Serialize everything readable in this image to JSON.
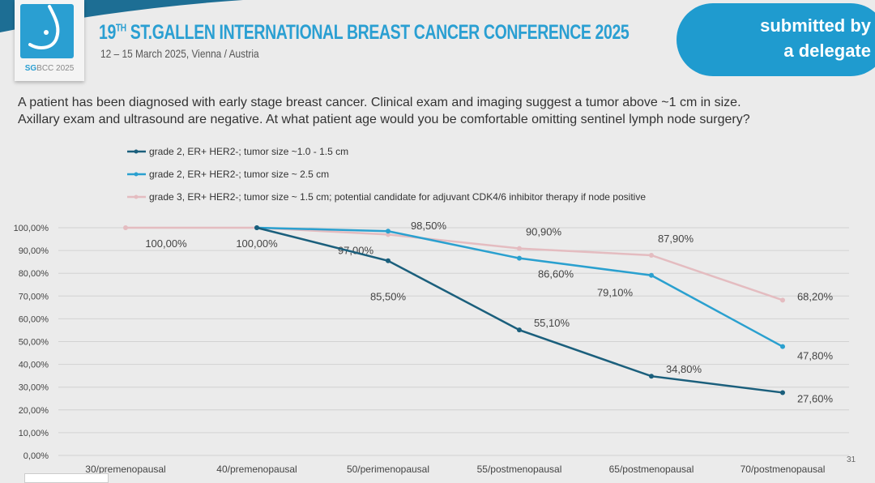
{
  "header": {
    "logo_text": "SGBCC 2025",
    "title_prefix": "19",
    "title_sup": "TH",
    "title_main": " ST.GALLEN INTERNATIONAL BREAST CANCER CONFERENCE 2025",
    "subtitle": "12 – 15 March 2025, Vienna / Austria",
    "badge_line1": "submitted by",
    "badge_line2": "a delegate"
  },
  "question_line1": "A patient has been diagnosed with early stage breast cancer.  Clinical exam and imaging suggest a tumor above ~1 cm in size.",
  "question_line2": "Axillary exam and ultrasound are negative.  At what patient age would you be comfortable omitting sentinel lymph node surgery?",
  "page_number": "31",
  "chart_data": {
    "type": "line",
    "categories": [
      "30/premenopausal",
      "40/premenopausal",
      "50/perimenopausal",
      "55/postmenopausal",
      "65/postmenopausal",
      "70/postmenopausal"
    ],
    "ylim": [
      0,
      100
    ],
    "yticks": [
      "0,00%",
      "10,00%",
      "20,00%",
      "30,00%",
      "40,00%",
      "50,00%",
      "60,00%",
      "70,00%",
      "80,00%",
      "90,00%",
      "100,00%"
    ],
    "grid": true,
    "legend_placement": "top-left",
    "series": [
      {
        "name": "grade 2, ER+ HER2-; tumor size ~1.0 - 1.5 cm",
        "color": "#1b5f7c",
        "values": [
          null,
          100,
          85.5,
          55.1,
          34.8,
          27.6
        ],
        "labels": [
          null,
          null,
          "85,50%",
          "55,10%",
          "34,80%",
          "27,60%"
        ]
      },
      {
        "name": "grade 2, ER+ HER2-; tumor size ~ 2.5 cm",
        "color": "#2aa0cf",
        "values": [
          null,
          100,
          98.5,
          86.6,
          79.1,
          47.8
        ],
        "labels": [
          null,
          null,
          "98,50%",
          "86,60%",
          "79,10%",
          "47,80%"
        ]
      },
      {
        "name": "grade 3, ER+ HER2-; tumor size ~ 1.5 cm; potential candidate for adjuvant CDK4/6 inhibitor therapy if node positive",
        "color": "#e4bcc0",
        "values": [
          100,
          100,
          97,
          90.9,
          87.9,
          68.2
        ],
        "labels": [
          "100,00%",
          "100,00%",
          "97,00%",
          "90,90%",
          "87,90%",
          "68,20%"
        ]
      }
    ]
  }
}
